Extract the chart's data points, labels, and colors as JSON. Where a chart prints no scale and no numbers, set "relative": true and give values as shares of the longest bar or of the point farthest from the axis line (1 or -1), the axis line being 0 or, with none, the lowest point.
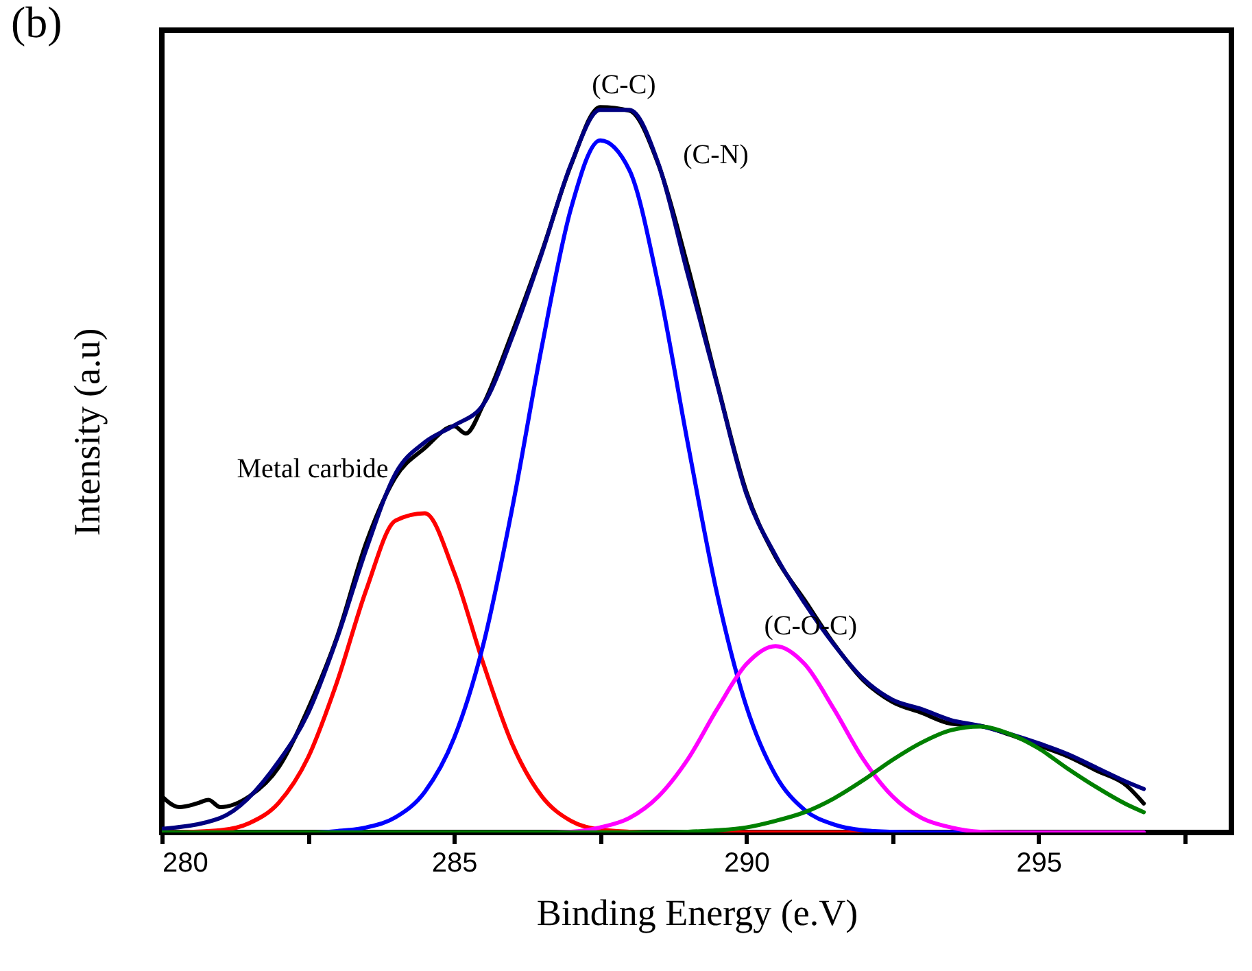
{
  "chart_data": {
    "type": "line",
    "relative": true,
    "xlabel": "Binding Energy (e.V)",
    "ylabel": "Intensity (a.u)",
    "xlim": [
      280,
      298.3
    ],
    "xticks": [
      280,
      {
        "value": 282.5,
        "label": null
      },
      285,
      {
        "value": 287.5,
        "label": null
      },
      290,
      {
        "value": 292.5,
        "label": null
      },
      295,
      {
        "value": 297.5,
        "label": null
      }
    ],
    "tick_labels": "x",
    "grid": false,
    "marker": "none",
    "line_style": "solid",
    "annotations": [
      "(b)",
      "(C-C)",
      "(C-N)",
      {
        "text": "(C-O-C)",
        "x": 291.1,
        "y": 0.285
      },
      "Metal carbide"
    ],
    "series": [
      {
        "color": "#000000",
        "x": [
          280,
          280.3,
          280.6,
          280.8,
          281,
          281.5,
          282,
          282.5,
          283,
          283.5,
          284,
          284.5,
          285,
          285.2,
          285.5,
          286,
          286.5,
          287,
          287.5,
          288,
          288.5,
          289,
          289.5,
          290,
          290.5,
          291,
          291.5,
          292,
          292.5,
          293,
          293.5,
          294,
          294.5,
          295,
          295.5,
          296,
          296.5,
          296.8
        ],
        "values": [
          0.05,
          0.035,
          0.04,
          0.045,
          0.035,
          0.05,
          0.09,
          0.17,
          0.27,
          0.4,
          0.49,
          0.53,
          0.56,
          0.55,
          0.59,
          0.69,
          0.8,
          0.92,
          1.0,
          0.995,
          0.92,
          0.78,
          0.62,
          0.47,
          0.38,
          0.32,
          0.26,
          0.21,
          0.18,
          0.165,
          0.15,
          0.147,
          0.135,
          0.12,
          0.105,
          0.085,
          0.065,
          0.04
        ]
      },
      {
        "color": "#000080",
        "x": [
          280,
          281,
          282,
          282.5,
          283,
          283.5,
          284,
          284.5,
          285,
          285.5,
          286,
          286.5,
          287,
          287.5,
          288,
          288.5,
          289,
          289.5,
          290,
          290.5,
          291,
          291.5,
          292,
          292.5,
          293,
          293.5,
          294,
          294.5,
          295,
          295.5,
          296,
          296.5,
          296.8
        ],
        "values": [
          0.005,
          0.02,
          0.098,
          0.164,
          0.268,
          0.391,
          0.495,
          0.538,
          0.561,
          0.59,
          0.684,
          0.798,
          0.921,
          0.996,
          0.996,
          0.921,
          0.769,
          0.618,
          0.467,
          0.382,
          0.316,
          0.259,
          0.212,
          0.183,
          0.17,
          0.155,
          0.147,
          0.136,
          0.123,
          0.108,
          0.089,
          0.07,
          0.06
        ]
      },
      {
        "color": "#ff0000",
        "x": [
          280,
          280.5,
          281,
          281.5,
          282,
          282.5,
          283,
          283.5,
          284,
          284.5,
          285,
          285.5,
          286,
          286.5,
          287,
          287.5,
          288,
          288.5,
          296.8
        ],
        "values": [
          0.0,
          0.001,
          0.003,
          0.013,
          0.041,
          0.103,
          0.208,
          0.335,
          0.43,
          0.44,
          0.359,
          0.233,
          0.121,
          0.05,
          0.016,
          0.004,
          0.001,
          0.0,
          0.0
        ]
      },
      {
        "color": "#0000ff",
        "x": [
          280,
          282.5,
          283,
          283.5,
          284,
          284.5,
          285,
          285.5,
          286,
          286.5,
          287,
          287.5,
          288,
          288.5,
          289,
          289.5,
          290,
          290.5,
          291,
          291.5,
          292,
          292.5,
          293,
          296.8
        ],
        "values": [
          0.0,
          0.0,
          0.002,
          0.007,
          0.021,
          0.056,
          0.13,
          0.259,
          0.449,
          0.669,
          0.86,
          0.954,
          0.913,
          0.753,
          0.536,
          0.329,
          0.174,
          0.079,
          0.031,
          0.011,
          0.003,
          0.001,
          0.0,
          0.0
        ]
      },
      {
        "color": "#ff00ff",
        "x": [
          280,
          286.5,
          287,
          287.5,
          288,
          288.5,
          289,
          289.5,
          290,
          290.5,
          291,
          291.5,
          292,
          292.5,
          293,
          293.5,
          294,
          294.5,
          296.8
        ],
        "values": [
          0.0,
          0.0,
          0.001,
          0.007,
          0.02,
          0.05,
          0.101,
          0.17,
          0.232,
          0.257,
          0.232,
          0.17,
          0.101,
          0.05,
          0.02,
          0.007,
          0.001,
          0.0,
          0.0
        ]
      },
      {
        "color": "#008000",
        "x": [
          280,
          288.5,
          289,
          289.5,
          290,
          290.5,
          291,
          291.5,
          292,
          292.5,
          293,
          293.5,
          294,
          294.5,
          295,
          295.5,
          296,
          296.5,
          296.8
        ],
        "values": [
          0.0,
          0.0,
          0.001,
          0.003,
          0.007,
          0.016,
          0.028,
          0.047,
          0.072,
          0.1,
          0.124,
          0.141,
          0.146,
          0.136,
          0.116,
          0.088,
          0.062,
          0.039,
          0.028
        ]
      }
    ]
  }
}
